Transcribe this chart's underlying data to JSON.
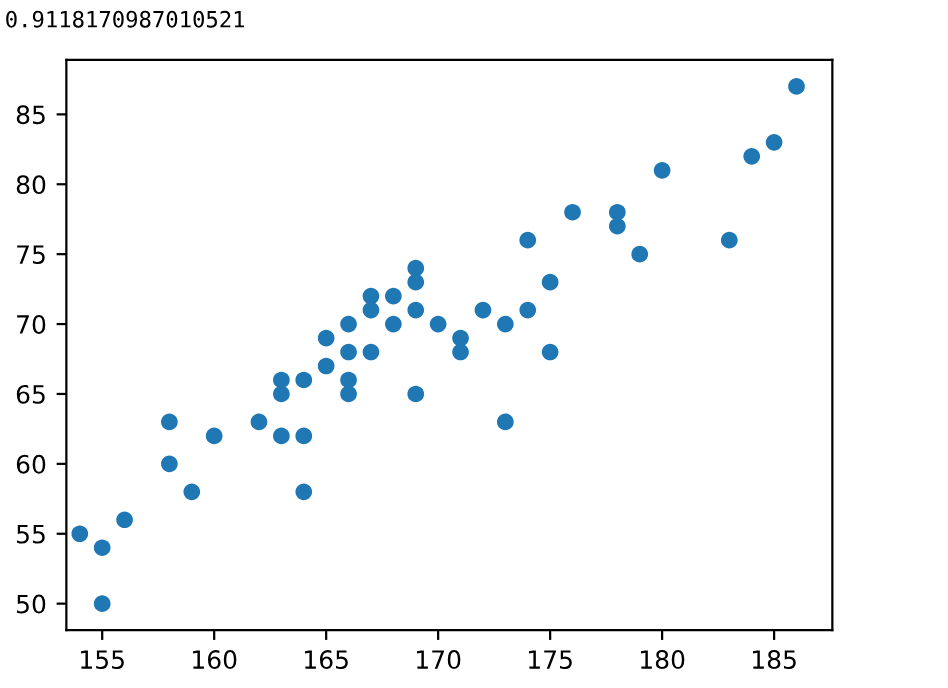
{
  "chart_data": {
    "type": "scatter",
    "title": "0.9118170987010521",
    "x": [
      154,
      155,
      155,
      156,
      158,
      158,
      159,
      160,
      162,
      163,
      163,
      163,
      164,
      164,
      164,
      165,
      165,
      166,
      166,
      166,
      166,
      167,
      167,
      167,
      168,
      168,
      169,
      169,
      169,
      169,
      170,
      171,
      171,
      172,
      173,
      173,
      174,
      174,
      175,
      175,
      176,
      178,
      178,
      179,
      180,
      183,
      184,
      185,
      186
    ],
    "values": [
      55,
      54,
      50,
      56,
      63,
      60,
      58,
      62,
      63,
      66,
      65,
      62,
      66,
      62,
      58,
      69,
      67,
      70,
      68,
      66,
      65,
      72,
      71,
      68,
      72,
      70,
      74,
      73,
      71,
      65,
      70,
      69,
      68,
      71,
      70,
      63,
      76,
      71,
      73,
      68,
      78,
      78,
      77,
      75,
      81,
      76,
      82,
      83,
      87
    ],
    "color": "#1f77b4",
    "marker": "circle",
    "xlim": [
      153.4,
      187.6
    ],
    "ylim": [
      48.1,
      88.9
    ],
    "xticks": [
      155,
      160,
      165,
      170,
      175,
      180,
      185
    ],
    "yticks": [
      50,
      55,
      60,
      65,
      70,
      75,
      80,
      85
    ],
    "grid": false
  }
}
